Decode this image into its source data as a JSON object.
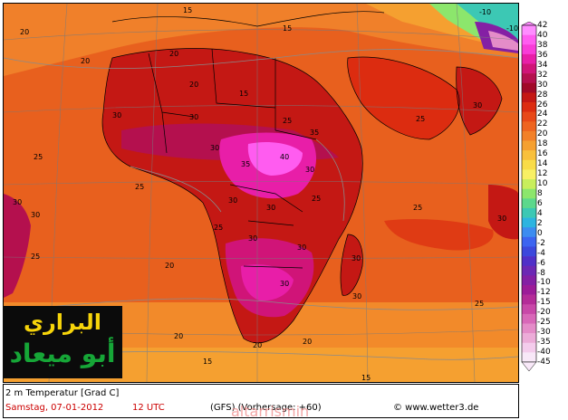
{
  "chart_data": {
    "type": "heatmap",
    "title": "2 m Temperatur [Grad C]",
    "units": "Grad C",
    "model": "(GFS)",
    "date": "Samstag, 07-01-2012",
    "time": "12 UTC",
    "legend": {
      "labels": [
        "42",
        "40",
        "38",
        "36",
        "34",
        "32",
        "30",
        "28",
        "26",
        "24",
        "22",
        "20",
        "18",
        "16",
        "14",
        "12",
        "10",
        "8",
        "6",
        "4",
        "2",
        "0",
        "-2",
        "-4",
        "-6",
        "-8",
        "-10",
        "-12",
        "-15",
        "-20",
        "-25",
        "-30",
        "-35",
        "-40",
        "-45"
      ],
      "colors": [
        "#ff8cff",
        "#ff5cf0",
        "#f83cd8",
        "#e81ea8",
        "#d01478",
        "#b4104e",
        "#a00a28",
        "#c41814",
        "#dc2c10",
        "#e84818",
        "#ee6420",
        "#f28028",
        "#f5a030",
        "#f8c03c",
        "#f9dc48",
        "#f8f064",
        "#c8ee5c",
        "#8ce66c",
        "#5cd88c",
        "#3cc8b4",
        "#2cb4e0",
        "#3c8cf0",
        "#3c64f0",
        "#3c48dc",
        "#5030c8",
        "#6c28b4",
        "#8420a4",
        "#9c1c98",
        "#b42c98",
        "#c848a8",
        "#d868b8",
        "#e48cc8",
        "#ecacd8",
        "#f4ccec",
        "#f8e8f8"
      ]
    },
    "contour_labels": [
      "15",
      "20",
      "25",
      "30",
      "35",
      "40",
      "-10"
    ]
  },
  "footer": {
    "title": "2 m Temperatur [Grad C]",
    "date": "Samstag, 07-01-2012",
    "time": "12 UTC",
    "model_run": "(GFS)   (Vorhersage: +60)",
    "copyright": "© www.wetter3.de"
  },
  "logo": {
    "line1": "البراري",
    "line2": "أبو ميعاد"
  },
  "watermark": "altarrismin"
}
